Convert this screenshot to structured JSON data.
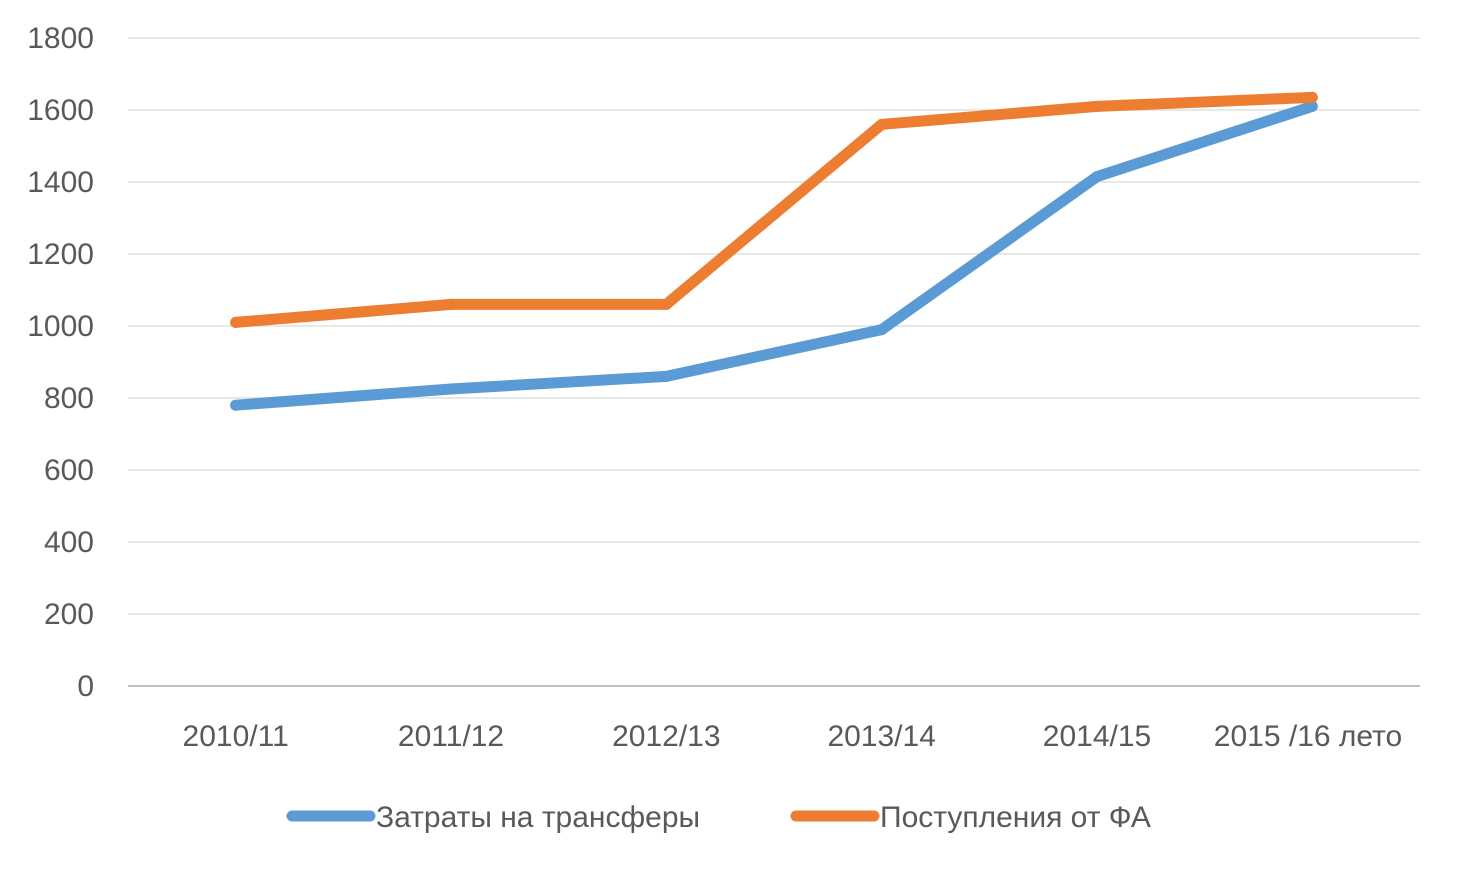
{
  "chart_data": {
    "type": "line",
    "categories": [
      "2010/11",
      "2011/12",
      "2012/13",
      "2013/14",
      "2014/15",
      "2015 /16 лето"
    ],
    "series": [
      {
        "name": "Затраты на трансферы",
        "color": "#5b9bd5",
        "values": [
          780,
          825,
          860,
          990,
          1415,
          1610
        ]
      },
      {
        "name": "Поступления от ФА",
        "color": "#ed7d31",
        "values": [
          1010,
          1060,
          1060,
          1560,
          1610,
          1635
        ]
      }
    ],
    "ylim": [
      0,
      1800
    ],
    "yticks": [
      0,
      200,
      400,
      600,
      800,
      1000,
      1200,
      1400,
      1600,
      1800
    ],
    "ytick_labels": [
      "0",
      "200",
      "400",
      "600",
      "800",
      "1000",
      "1200",
      "1400",
      "1600",
      "1800"
    ],
    "grid": true,
    "legend_position": "bottom"
  }
}
